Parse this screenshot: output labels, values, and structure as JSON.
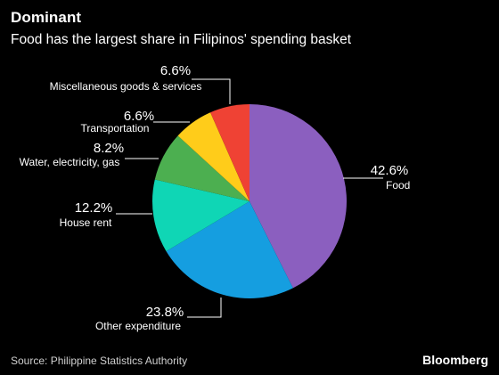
{
  "chart_data": {
    "type": "pie",
    "title": "Dominant",
    "subtitle": "Food has the largest share in Filipinos' spending basket",
    "categories": [
      "Food",
      "Other expenditure",
      "House rent",
      "Water, electricity, gas",
      "Transportation",
      "Miscellaneous goods & services"
    ],
    "values": [
      42.6,
      23.8,
      12.2,
      8.2,
      6.6,
      6.6
    ],
    "value_labels": [
      "42.6%",
      "23.8%",
      "12.2%",
      "8.2%",
      "6.6%",
      "6.6%"
    ],
    "colors": [
      "#8b5fbf",
      "#159ee0",
      "#0fd6b5",
      "#4caf50",
      "#ffcc1a",
      "#ef4234"
    ],
    "legend": "none"
  },
  "source": "Source: Philippine Statistics Authority",
  "brand": "Bloomberg"
}
